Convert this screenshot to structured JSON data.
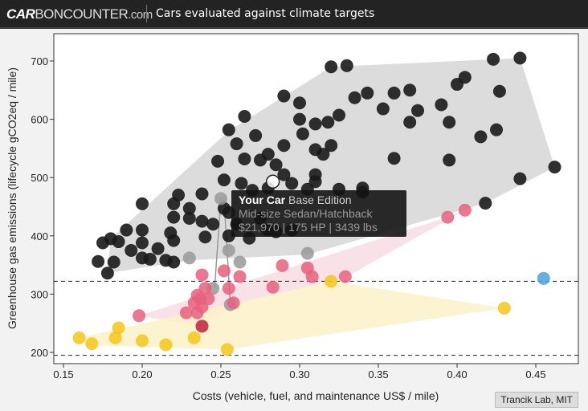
{
  "header": {
    "logo_bold": "CAR",
    "logo_rest": "BONCOUNTER",
    "logo_suffix": ".com",
    "subtitle": "Cars evaluated against climate targets"
  },
  "credit": "Trancik Lab, MIT",
  "tooltip": {
    "name": "Your Car",
    "edition": "Base Edition",
    "class": "Mid-size Sedan/Hatchback",
    "specs": "$21,970 | 175 HP | 3439 lbs"
  },
  "colors": {
    "black": "#1a1a1a",
    "gray": "#999999",
    "white": "#ffffff",
    "pink": "#e8607e",
    "darkred": "#c0203e",
    "yellow": "#f5c518",
    "blue": "#4a9fe0",
    "hull_gray": "#d6d6d6",
    "hull_pink": "#f8dde3",
    "hull_yellow": "#fbf1c8"
  },
  "chart_data": {
    "type": "scatter",
    "xlabel": "Costs (vehicle, fuel, and maintenance US$ / mile)",
    "ylabel": "Greenhouse gas emissions (lifecycle gCO2eq / mile)",
    "xlim": [
      0.145,
      0.465
    ],
    "ylim": [
      190,
      730
    ],
    "xticks": [
      "0.15",
      "0.20",
      "0.25",
      "0.30",
      "0.35",
      "0.40",
      "0.45"
    ],
    "yticks": [
      "200",
      "300",
      "400",
      "500",
      "600",
      "700"
    ],
    "targets": [
      322,
      195
    ],
    "hulls": [
      {
        "color": "hull_gray",
        "points": [
          [
            0.178,
            336
          ],
          [
            0.18,
            395
          ],
          [
            0.255,
            580
          ],
          [
            0.32,
            690
          ],
          [
            0.44,
            705
          ],
          [
            0.462,
            518
          ],
          [
            0.418,
            456
          ],
          [
            0.305,
            368
          ],
          [
            0.23,
            358
          ]
        ]
      },
      {
        "color": "hull_pink",
        "points": [
          [
            0.198,
            263
          ],
          [
            0.394,
            432
          ],
          [
            0.405,
            444
          ],
          [
            0.33,
            330
          ],
          [
            0.26,
            282
          ],
          [
            0.238,
            245
          ]
        ]
      },
      {
        "color": "hull_yellow",
        "points": [
          [
            0.16,
            225
          ],
          [
            0.32,
            322
          ],
          [
            0.43,
            276
          ],
          [
            0.254,
            205
          ],
          [
            0.168,
            212
          ]
        ]
      }
    ],
    "connectors": [
      [
        [
          0.25,
          464
        ],
        [
          0.246,
          310
        ]
      ],
      [
        [
          0.252,
          462
        ],
        [
          0.256,
          282
        ]
      ]
    ],
    "series": [
      {
        "name": "black",
        "points": [
          [
            0.32,
            690
          ],
          [
            0.33,
            692
          ],
          [
            0.423,
            703
          ],
          [
            0.44,
            705
          ],
          [
            0.4,
            660
          ],
          [
            0.405,
            672
          ],
          [
            0.427,
            648
          ],
          [
            0.37,
            650
          ],
          [
            0.36,
            645
          ],
          [
            0.343,
            645
          ],
          [
            0.335,
            637
          ],
          [
            0.29,
            640
          ],
          [
            0.3,
            628
          ],
          [
            0.325,
            607
          ],
          [
            0.3,
            600
          ],
          [
            0.31,
            592
          ],
          [
            0.318,
            595
          ],
          [
            0.353,
            618
          ],
          [
            0.375,
            615
          ],
          [
            0.37,
            595
          ],
          [
            0.39,
            625
          ],
          [
            0.395,
            595
          ],
          [
            0.265,
            605
          ],
          [
            0.255,
            582
          ],
          [
            0.26,
            558
          ],
          [
            0.272,
            572
          ],
          [
            0.29,
            555
          ],
          [
            0.302,
            575
          ],
          [
            0.31,
            548
          ],
          [
            0.32,
            555
          ],
          [
            0.315,
            540
          ],
          [
            0.36,
            533
          ],
          [
            0.395,
            530
          ],
          [
            0.415,
            570
          ],
          [
            0.425,
            582
          ],
          [
            0.462,
            518
          ],
          [
            0.44,
            498
          ],
          [
            0.418,
            456
          ],
          [
            0.28,
            540
          ],
          [
            0.285,
            522
          ],
          [
            0.275,
            530
          ],
          [
            0.265,
            532
          ],
          [
            0.248,
            528
          ],
          [
            0.29,
            505
          ],
          [
            0.31,
            505
          ],
          [
            0.305,
            480
          ],
          [
            0.325,
            480
          ],
          [
            0.31,
            493
          ],
          [
            0.252,
            496
          ],
          [
            0.263,
            490
          ],
          [
            0.27,
            478
          ],
          [
            0.28,
            482
          ],
          [
            0.295,
            490
          ],
          [
            0.34,
            482
          ],
          [
            0.34,
            475
          ],
          [
            0.238,
            472
          ],
          [
            0.223,
            470
          ],
          [
            0.2,
            455
          ],
          [
            0.22,
            455
          ],
          [
            0.23,
            447
          ],
          [
            0.252,
            447
          ],
          [
            0.23,
            430
          ],
          [
            0.238,
            425
          ],
          [
            0.245,
            420
          ],
          [
            0.26,
            420
          ],
          [
            0.22,
            432
          ],
          [
            0.2,
            410
          ],
          [
            0.218,
            405
          ],
          [
            0.19,
            410
          ],
          [
            0.185,
            390
          ],
          [
            0.175,
            388
          ],
          [
            0.2,
            388
          ],
          [
            0.21,
            378
          ],
          [
            0.22,
            392
          ],
          [
            0.24,
            398
          ],
          [
            0.255,
            400
          ],
          [
            0.268,
            396
          ],
          [
            0.28,
            410
          ],
          [
            0.285,
            407
          ],
          [
            0.295,
            410
          ],
          [
            0.275,
            430
          ],
          [
            0.255,
            440
          ],
          [
            0.18,
            395
          ],
          [
            0.193,
            375
          ],
          [
            0.2,
            362
          ],
          [
            0.215,
            358
          ],
          [
            0.205,
            360
          ],
          [
            0.22,
            355
          ],
          [
            0.172,
            356
          ],
          [
            0.182,
            355
          ],
          [
            0.178,
            336
          ]
        ]
      },
      {
        "name": "gray",
        "points": [
          [
            0.23,
            362
          ],
          [
            0.255,
            375
          ],
          [
            0.262,
            355
          ],
          [
            0.305,
            370
          ],
          [
            0.25,
            464
          ],
          [
            0.245,
            310
          ],
          [
            0.256,
            282
          ]
        ]
      },
      {
        "name": "white",
        "points": [
          [
            0.283,
            493
          ]
        ]
      },
      {
        "name": "pink",
        "points": [
          [
            0.394,
            432
          ],
          [
            0.405,
            444
          ],
          [
            0.238,
            333
          ],
          [
            0.252,
            340
          ],
          [
            0.262,
            330
          ],
          [
            0.24,
            310
          ],
          [
            0.255,
            310
          ],
          [
            0.289,
            349
          ],
          [
            0.305,
            345
          ],
          [
            0.308,
            330
          ],
          [
            0.329,
            330
          ],
          [
            0.283,
            312
          ],
          [
            0.233,
            285
          ],
          [
            0.237,
            292
          ],
          [
            0.242,
            292
          ],
          [
            0.235,
            298
          ],
          [
            0.238,
            278
          ],
          [
            0.235,
            268
          ],
          [
            0.258,
            285
          ],
          [
            0.198,
            263
          ],
          [
            0.228,
            268
          ]
        ]
      },
      {
        "name": "darkred",
        "points": [
          [
            0.238,
            245
          ]
        ]
      },
      {
        "name": "yellow",
        "points": [
          [
            0.16,
            225
          ],
          [
            0.168,
            215
          ],
          [
            0.185,
            242
          ],
          [
            0.183,
            225
          ],
          [
            0.2,
            220
          ],
          [
            0.215,
            213
          ],
          [
            0.233,
            225
          ],
          [
            0.254,
            205
          ],
          [
            0.32,
            322
          ],
          [
            0.43,
            276
          ]
        ]
      },
      {
        "name": "blue",
        "points": [
          [
            0.455,
            327
          ]
        ]
      }
    ]
  }
}
